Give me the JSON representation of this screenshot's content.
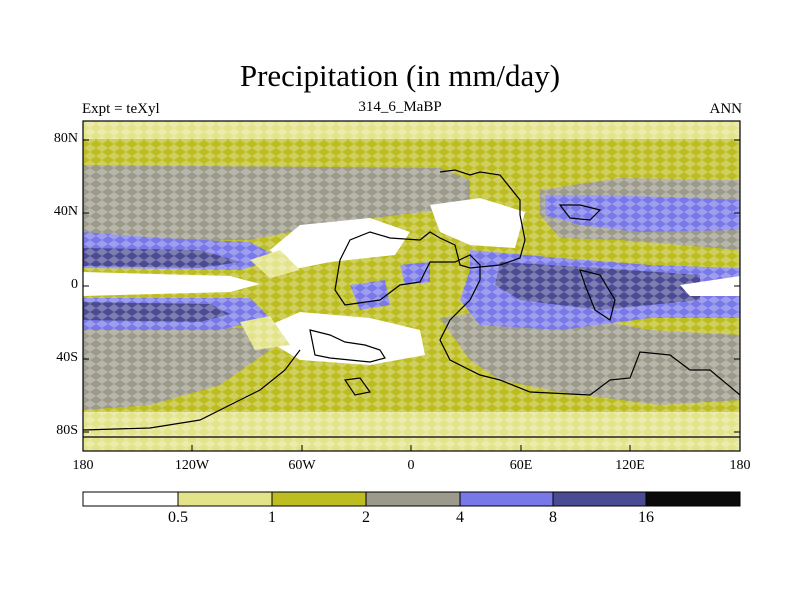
{
  "title": "Precipitation (in mm/day)",
  "left_label": "Expt = teXyl",
  "center_label": "314_6_MaBP",
  "right_label": "ANN",
  "lat_ticks": [
    "80N",
    "40N",
    "0",
    "40S",
    "80S"
  ],
  "lon_ticks": [
    "180",
    "120W",
    "60W",
    "0",
    "60E",
    "120E",
    "180"
  ],
  "colorbar": {
    "colors": [
      "#ffffff",
      "#e3e38a",
      "#bdbd21",
      "#9c9a8a",
      "#7878e8",
      "#4b4b94",
      "#0a0a0a"
    ],
    "labels": [
      "0.5",
      "1",
      "2",
      "4",
      "8",
      "16"
    ]
  },
  "colors": {
    "white": "#ffffff",
    "pale_yellow": "#e3e38a",
    "olive": "#bdbd21",
    "gray": "#9c9a8a",
    "blue": "#7878e8",
    "dark_blue": "#4b4b94",
    "coast": "#000000"
  }
}
